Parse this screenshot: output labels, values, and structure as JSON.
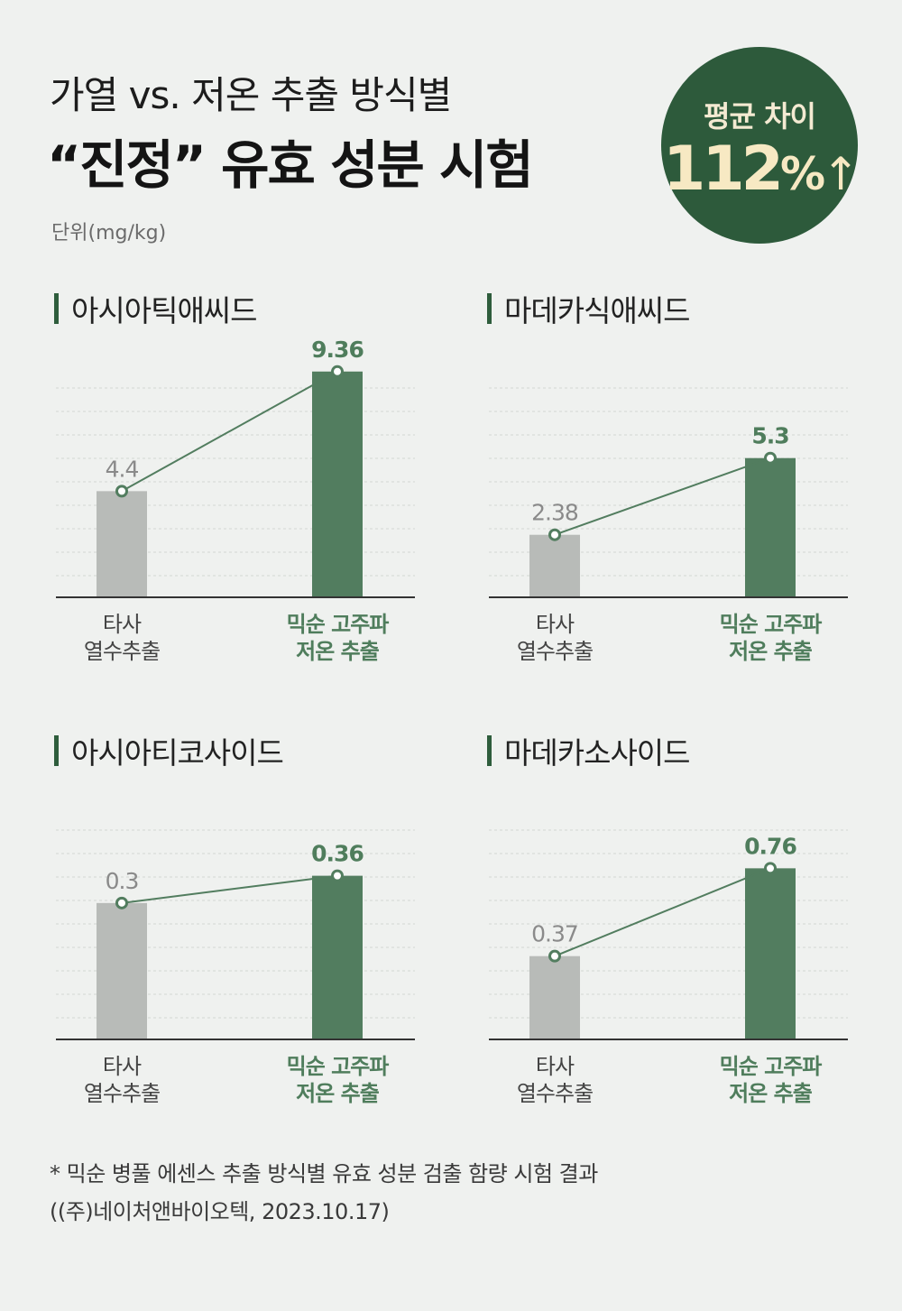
{
  "header": {
    "subtitle": "가열 vs. 저온 추출 방식별",
    "title": "“진정” 유효 성분 시험",
    "unit": "단위(mg/kg)"
  },
  "badge": {
    "label": "평균 차이",
    "number": "112",
    "percent": "%",
    "arrow": "↑"
  },
  "colors": {
    "other_bar": "#b8bbb8",
    "mixsoon_bar": "#527d5f",
    "accent_text": "#4f7d5c",
    "badge_bg": "#2d5a3b"
  },
  "chart_data": [
    {
      "type": "bar",
      "title": "아시아틱애씨드",
      "categories": [
        [
          "타사",
          "열수추출"
        ],
        [
          "믹순 고주파",
          "저온 추출"
        ]
      ],
      "values": [
        4.4,
        9.36
      ],
      "labels": [
        "4.4",
        "9.36"
      ],
      "ylim": [
        0,
        9.8
      ]
    },
    {
      "type": "bar",
      "title": "마데카식애씨드",
      "categories": [
        [
          "타사",
          "열수추출"
        ],
        [
          "믹순 고주파",
          "저온 추출"
        ]
      ],
      "values": [
        2.38,
        5.3
      ],
      "labels": [
        "2.38",
        "5.3"
      ],
      "ylim": [
        0,
        9.0
      ]
    },
    {
      "type": "bar",
      "title": "아시아티코사이드",
      "categories": [
        [
          "타사",
          "열수추출"
        ],
        [
          "믹순 고주파",
          "저온 추출"
        ]
      ],
      "values": [
        0.3,
        0.36
      ],
      "labels": [
        "0.3",
        "0.36"
      ],
      "ylim": [
        0,
        0.52
      ]
    },
    {
      "type": "bar",
      "title": "마데카소사이드",
      "categories": [
        [
          "타사",
          "열수추출"
        ],
        [
          "믹순 고주파",
          "저온 추출"
        ]
      ],
      "values": [
        0.37,
        0.76
      ],
      "labels": [
        "0.37",
        "0.76"
      ],
      "ylim": [
        0,
        1.05
      ]
    }
  ],
  "footnote": {
    "line1": "* 믹순 병풀 에센스 추출 방식별 유효 성분 검출 함량 시험 결과",
    "line2": "  ((주)네이처앤바이오텍, 2023.10.17)"
  }
}
